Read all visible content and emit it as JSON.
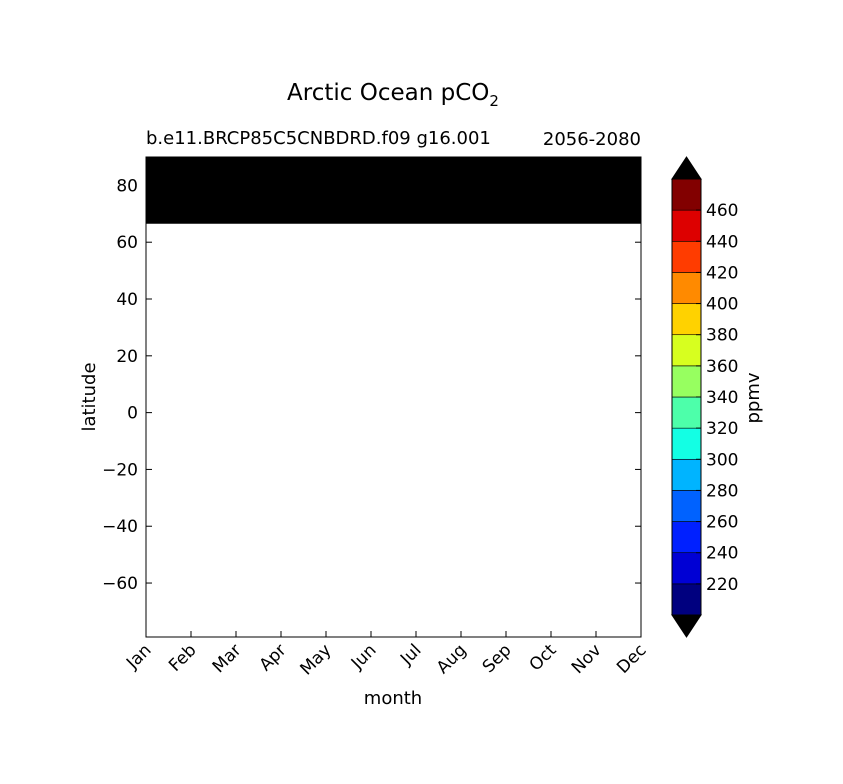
{
  "chart_data": {
    "type": "heatmap",
    "title": "Arctic Ocean pCO",
    "title_subscript": "2",
    "subtitle_left": "b.e11.BRCP85C5CNBDRD.f09 g16.001",
    "subtitle_right": "2056-2080",
    "xlabel": "month",
    "ylabel": "latitude",
    "x_categories": [
      "Jan",
      "Feb",
      "Mar",
      "Apr",
      "May",
      "Jun",
      "Jul",
      "Aug",
      "Sep",
      "Oct",
      "Nov",
      "Dec"
    ],
    "y_ticks": [
      80,
      60,
      40,
      20,
      0,
      -20,
      -40,
      -60
    ],
    "y_tick_labels": [
      "80",
      "60",
      "40",
      "20",
      "0",
      "−20",
      "−40",
      "−60"
    ],
    "ylim": [
      -79,
      90
    ],
    "filled_band": {
      "lat_min": 66.5,
      "lat_max": 90,
      "color": "#000000"
    },
    "grid": false,
    "legend": "none",
    "colorbar": {
      "label": "ppmv",
      "placement": "right",
      "levels": [
        200,
        220,
        240,
        260,
        280,
        300,
        320,
        340,
        360,
        380,
        400,
        420,
        440,
        460,
        480
      ],
      "tick_values": [
        220,
        240,
        260,
        280,
        300,
        320,
        340,
        360,
        380,
        400,
        420,
        440,
        460
      ],
      "colors": [
        "#00007f",
        "#0000d4",
        "#0020ff",
        "#0062ff",
        "#00b4ff",
        "#13ffe4",
        "#4dffaa",
        "#97ff60",
        "#d7ff1f",
        "#ffd200",
        "#ff8a00",
        "#ff3c00",
        "#dd0000",
        "#820000"
      ],
      "extend_colors": {
        "under": "#000000",
        "over": "#000000"
      }
    }
  }
}
